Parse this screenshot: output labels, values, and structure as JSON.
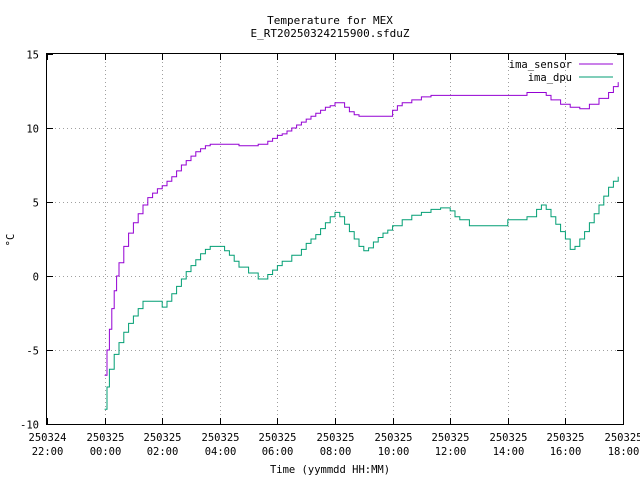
{
  "chart_data": {
    "type": "line",
    "title": "Temperature for MEX",
    "subtitle": "E_RT20250324215900.sfduZ",
    "xlabel": "Time (yymmdd HH:MM)",
    "ylabel": "°C",
    "xlim": [
      "2025-03-24 22:00",
      "2025-03-25 18:00"
    ],
    "ylim": [
      -10,
      15
    ],
    "yticks": [
      -10,
      -5,
      0,
      5,
      10,
      15
    ],
    "xticks": [
      {
        "t": "2025-03-24 22:00",
        "line1": "250324",
        "line2": "22:00"
      },
      {
        "t": "2025-03-25 00:00",
        "line1": "250325",
        "line2": "00:00"
      },
      {
        "t": "2025-03-25 02:00",
        "line1": "250325",
        "line2": "02:00"
      },
      {
        "t": "2025-03-25 04:00",
        "line1": "250325",
        "line2": "04:00"
      },
      {
        "t": "2025-03-25 06:00",
        "line1": "250325",
        "line2": "06:00"
      },
      {
        "t": "2025-03-25 08:00",
        "line1": "250325",
        "line2": "08:00"
      },
      {
        "t": "2025-03-25 10:00",
        "line1": "250325",
        "line2": "10:00"
      },
      {
        "t": "2025-03-25 12:00",
        "line1": "250325",
        "line2": "12:00"
      },
      {
        "t": "2025-03-25 14:00",
        "line1": "250325",
        "line2": "14:00"
      },
      {
        "t": "2025-03-25 16:00",
        "line1": "250325",
        "line2": "16:00"
      },
      {
        "t": "2025-03-25 18:00",
        "line1": "250325",
        "line2": "18:00"
      }
    ],
    "grid": true,
    "legend_position": "top-right",
    "series": [
      {
        "name": "ima_sensor",
        "color": "#9400d3",
        "x": [
          "2025-03-25 00:00",
          "2025-03-25 00:05",
          "2025-03-25 00:10",
          "2025-03-25 00:15",
          "2025-03-25 00:20",
          "2025-03-25 00:25",
          "2025-03-25 00:30",
          "2025-03-25 00:40",
          "2025-03-25 00:50",
          "2025-03-25 01:00",
          "2025-03-25 01:10",
          "2025-03-25 01:20",
          "2025-03-25 01:30",
          "2025-03-25 01:40",
          "2025-03-25 01:50",
          "2025-03-25 02:00",
          "2025-03-25 02:10",
          "2025-03-25 02:20",
          "2025-03-25 02:30",
          "2025-03-25 02:40",
          "2025-03-25 02:50",
          "2025-03-25 03:00",
          "2025-03-25 03:10",
          "2025-03-25 03:20",
          "2025-03-25 03:30",
          "2025-03-25 03:40",
          "2025-03-25 04:00",
          "2025-03-25 04:40",
          "2025-03-25 05:20",
          "2025-03-25 05:40",
          "2025-03-25 05:50",
          "2025-03-25 06:00",
          "2025-03-25 06:10",
          "2025-03-25 06:20",
          "2025-03-25 06:30",
          "2025-03-25 06:40",
          "2025-03-25 06:50",
          "2025-03-25 07:00",
          "2025-03-25 07:10",
          "2025-03-25 07:20",
          "2025-03-25 07:30",
          "2025-03-25 07:40",
          "2025-03-25 07:50",
          "2025-03-25 08:00",
          "2025-03-25 08:20",
          "2025-03-25 08:30",
          "2025-03-25 08:40",
          "2025-03-25 08:50",
          "2025-03-25 09:40",
          "2025-03-25 10:00",
          "2025-03-25 10:10",
          "2025-03-25 10:20",
          "2025-03-25 10:40",
          "2025-03-25 11:00",
          "2025-03-25 11:20",
          "2025-03-25 11:40",
          "2025-03-25 13:00",
          "2025-03-25 14:00",
          "2025-03-25 14:40",
          "2025-03-25 15:20",
          "2025-03-25 15:30",
          "2025-03-25 15:50",
          "2025-03-25 16:10",
          "2025-03-25 16:30",
          "2025-03-25 16:50",
          "2025-03-25 17:10",
          "2025-03-25 17:30",
          "2025-03-25 17:40",
          "2025-03-25 17:50"
        ],
        "y": [
          -6.7,
          -5.0,
          -3.6,
          -2.2,
          -1.0,
          0.0,
          0.9,
          2.0,
          2.9,
          3.6,
          4.2,
          4.8,
          5.3,
          5.6,
          5.9,
          6.1,
          6.4,
          6.7,
          7.1,
          7.5,
          7.8,
          8.1,
          8.4,
          8.6,
          8.8,
          8.9,
          8.9,
          8.8,
          8.9,
          9.1,
          9.3,
          9.5,
          9.6,
          9.8,
          10.0,
          10.2,
          10.4,
          10.6,
          10.8,
          11.0,
          11.2,
          11.4,
          11.5,
          11.7,
          11.4,
          11.1,
          10.9,
          10.8,
          10.8,
          11.2,
          11.5,
          11.7,
          11.9,
          12.1,
          12.2,
          12.2,
          12.2,
          12.2,
          12.4,
          12.2,
          11.9,
          11.6,
          11.4,
          11.3,
          11.6,
          12.0,
          12.4,
          12.8,
          13.1
        ]
      },
      {
        "name": "ima_dpu",
        "color": "#009e73",
        "x": [
          "2025-03-25 00:00",
          "2025-03-25 00:05",
          "2025-03-25 00:10",
          "2025-03-25 00:20",
          "2025-03-25 00:30",
          "2025-03-25 00:40",
          "2025-03-25 00:50",
          "2025-03-25 01:00",
          "2025-03-25 01:10",
          "2025-03-25 01:20",
          "2025-03-25 01:30",
          "2025-03-25 01:40",
          "2025-03-25 02:00",
          "2025-03-25 02:10",
          "2025-03-25 02:20",
          "2025-03-25 02:30",
          "2025-03-25 02:40",
          "2025-03-25 02:50",
          "2025-03-25 03:00",
          "2025-03-25 03:10",
          "2025-03-25 03:20",
          "2025-03-25 03:30",
          "2025-03-25 03:40",
          "2025-03-25 04:00",
          "2025-03-25 04:10",
          "2025-03-25 04:20",
          "2025-03-25 04:30",
          "2025-03-25 04:40",
          "2025-03-25 05:00",
          "2025-03-25 05:20",
          "2025-03-25 05:30",
          "2025-03-25 05:40",
          "2025-03-25 05:50",
          "2025-03-25 06:00",
          "2025-03-25 06:10",
          "2025-03-25 06:30",
          "2025-03-25 06:50",
          "2025-03-25 07:00",
          "2025-03-25 07:10",
          "2025-03-25 07:20",
          "2025-03-25 07:30",
          "2025-03-25 07:40",
          "2025-03-25 07:50",
          "2025-03-25 08:00",
          "2025-03-25 08:10",
          "2025-03-25 08:20",
          "2025-03-25 08:30",
          "2025-03-25 08:40",
          "2025-03-25 08:50",
          "2025-03-25 09:00",
          "2025-03-25 09:10",
          "2025-03-25 09:20",
          "2025-03-25 09:30",
          "2025-03-25 09:40",
          "2025-03-25 09:50",
          "2025-03-25 10:00",
          "2025-03-25 10:20",
          "2025-03-25 10:40",
          "2025-03-25 11:00",
          "2025-03-25 11:20",
          "2025-03-25 11:40",
          "2025-03-25 12:00",
          "2025-03-25 12:10",
          "2025-03-25 12:20",
          "2025-03-25 12:40",
          "2025-03-25 13:00",
          "2025-03-25 13:20",
          "2025-03-25 13:40",
          "2025-03-25 14:00",
          "2025-03-25 14:20",
          "2025-03-25 14:40",
          "2025-03-25 15:00",
          "2025-03-25 15:10",
          "2025-03-25 15:20",
          "2025-03-25 15:30",
          "2025-03-25 15:40",
          "2025-03-25 15:50",
          "2025-03-25 16:00",
          "2025-03-25 16:10",
          "2025-03-25 16:20",
          "2025-03-25 16:30",
          "2025-03-25 16:40",
          "2025-03-25 16:50",
          "2025-03-25 17:00",
          "2025-03-25 17:10",
          "2025-03-25 17:20",
          "2025-03-25 17:30",
          "2025-03-25 17:40",
          "2025-03-25 17:50"
        ],
        "y": [
          -9.0,
          -7.5,
          -6.3,
          -5.3,
          -4.5,
          -3.8,
          -3.2,
          -2.7,
          -2.2,
          -1.7,
          -1.7,
          -1.7,
          -2.1,
          -1.7,
          -1.2,
          -0.7,
          -0.2,
          0.3,
          0.7,
          1.1,
          1.5,
          1.8,
          2.0,
          2.0,
          1.7,
          1.4,
          1.0,
          0.6,
          0.2,
          -0.2,
          -0.2,
          0.1,
          0.4,
          0.7,
          1.0,
          1.4,
          1.8,
          2.2,
          2.5,
          2.8,
          3.2,
          3.6,
          4.0,
          4.3,
          4.0,
          3.5,
          3.0,
          2.5,
          2.0,
          1.7,
          1.9,
          2.3,
          2.6,
          2.9,
          3.1,
          3.4,
          3.8,
          4.1,
          4.3,
          4.5,
          4.6,
          4.4,
          4.0,
          3.8,
          3.4,
          3.4,
          3.4,
          3.4,
          3.8,
          3.8,
          4.0,
          4.5,
          4.8,
          4.5,
          4.0,
          3.5,
          3.0,
          2.5,
          1.8,
          2.0,
          2.5,
          3.0,
          3.6,
          4.2,
          4.8,
          5.4,
          6.0,
          6.4,
          6.7
        ]
      }
    ]
  }
}
